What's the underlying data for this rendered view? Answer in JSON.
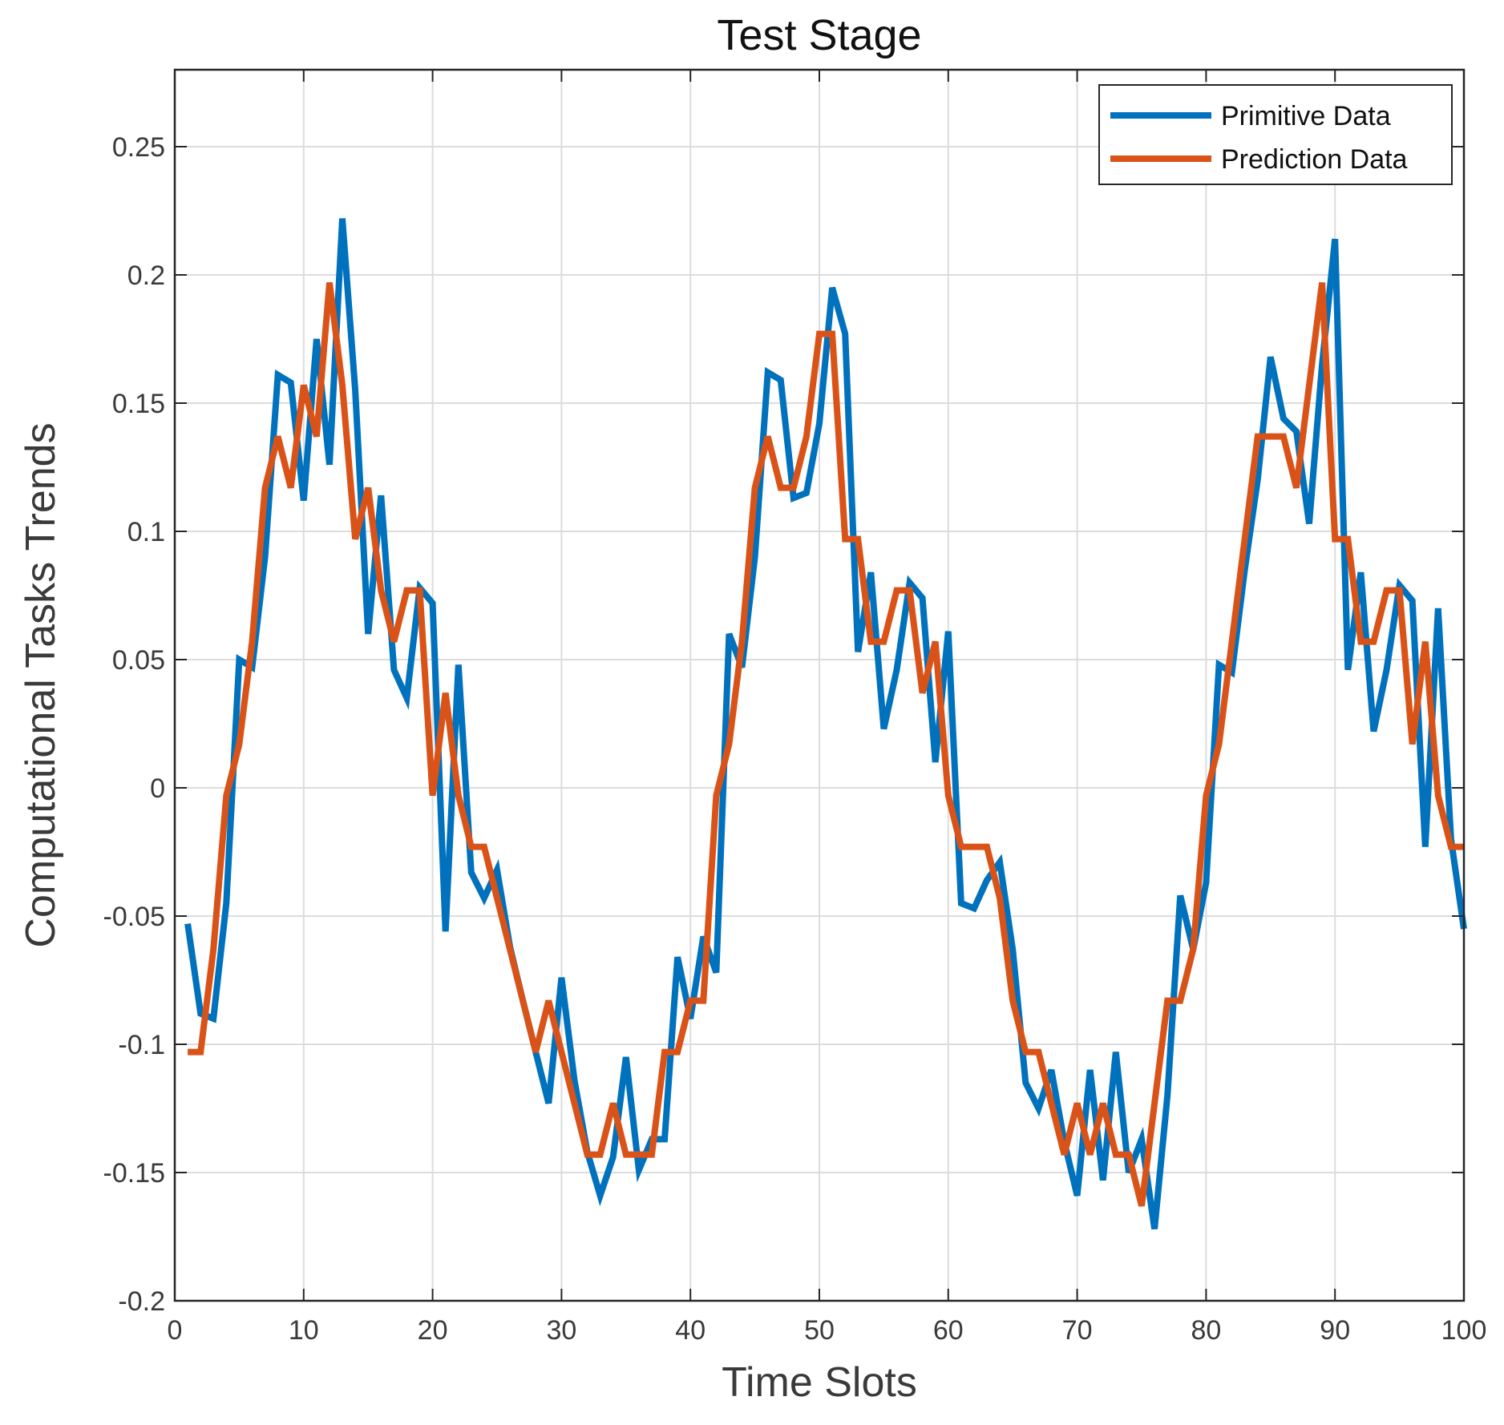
{
  "chart_data": {
    "type": "line",
    "title": "Test Stage",
    "xlabel": "Time Slots",
    "ylabel": "Computational Tasks Trends",
    "xlim": [
      0,
      100
    ],
    "ylim": [
      -0.2,
      0.28
    ],
    "xticks": [
      0,
      10,
      20,
      30,
      40,
      50,
      60,
      70,
      80,
      90,
      100
    ],
    "xtick_labels": [
      "0",
      "10",
      "20",
      "30",
      "40",
      "50",
      "60",
      "70",
      "80",
      "90",
      "100"
    ],
    "yticks": [
      -0.2,
      -0.15,
      -0.1,
      -0.05,
      0,
      0.05,
      0.1,
      0.15,
      0.2,
      0.25
    ],
    "ytick_labels": [
      "-0.2",
      "-0.15",
      "-0.1",
      "-0.05",
      "0",
      "0.05",
      "0.1",
      "0.15",
      "0.2",
      "0.25"
    ],
    "grid": true,
    "legend_position": "top-right",
    "x": [
      1,
      2,
      3,
      4,
      5,
      6,
      7,
      8,
      9,
      10,
      11,
      12,
      13,
      14,
      15,
      16,
      17,
      18,
      19,
      20,
      21,
      22,
      23,
      24,
      25,
      26,
      27,
      28,
      29,
      30,
      31,
      32,
      33,
      34,
      35,
      36,
      37,
      38,
      39,
      40,
      41,
      42,
      43,
      44,
      45,
      46,
      47,
      48,
      49,
      50,
      51,
      52,
      53,
      54,
      55,
      56,
      57,
      58,
      59,
      60,
      61,
      62,
      63,
      64,
      65,
      66,
      67,
      68,
      69,
      70,
      71,
      72,
      73,
      74,
      75,
      76,
      77,
      78,
      79,
      80,
      81,
      82,
      83,
      84,
      85,
      86,
      87,
      88,
      89,
      90,
      91,
      92,
      93,
      94,
      95,
      96,
      97,
      98,
      99,
      100
    ],
    "series": [
      {
        "name": "Primitive Data",
        "color": "#0072BD",
        "values": [
          -0.053,
          -0.088,
          -0.09,
          -0.045,
          0.05,
          0.047,
          0.09,
          0.161,
          0.158,
          0.112,
          0.175,
          0.126,
          0.222,
          0.155,
          0.06,
          0.114,
          0.046,
          0.035,
          0.078,
          0.072,
          -0.056,
          0.048,
          -0.033,
          -0.043,
          -0.032,
          -0.062,
          -0.083,
          -0.103,
          -0.123,
          -0.074,
          -0.114,
          -0.142,
          -0.159,
          -0.144,
          -0.105,
          -0.149,
          -0.137,
          -0.137,
          -0.066,
          -0.09,
          -0.058,
          -0.072,
          0.06,
          0.047,
          0.09,
          0.162,
          0.159,
          0.113,
          0.115,
          0.142,
          0.195,
          0.177,
          0.053,
          0.084,
          0.023,
          0.046,
          0.08,
          0.074,
          0.01,
          0.061,
          -0.045,
          -0.047,
          -0.036,
          -0.029,
          -0.063,
          -0.115,
          -0.125,
          -0.11,
          -0.138,
          -0.159,
          -0.11,
          -0.153,
          -0.103,
          -0.15,
          -0.137,
          -0.172,
          -0.12,
          -0.042,
          -0.063,
          -0.037,
          0.048,
          0.045,
          0.085,
          0.12,
          0.168,
          0.144,
          0.139,
          0.103,
          0.165,
          0.214,
          0.046,
          0.084,
          0.022,
          0.046,
          0.079,
          0.073,
          -0.023,
          0.07,
          -0.02,
          -0.055
        ]
      },
      {
        "name": "Prediction Data",
        "color": "#D95319",
        "values": [
          -0.103,
          -0.103,
          -0.063,
          -0.003,
          0.017,
          0.057,
          0.117,
          0.137,
          0.117,
          0.157,
          0.137,
          0.197,
          0.157,
          0.097,
          0.117,
          0.077,
          0.057,
          0.077,
          0.077,
          -0.003,
          0.037,
          -0.003,
          -0.023,
          -0.023,
          -0.043,
          -0.063,
          -0.083,
          -0.103,
          -0.083,
          -0.103,
          -0.123,
          -0.143,
          -0.143,
          -0.123,
          -0.143,
          -0.143,
          -0.143,
          -0.103,
          -0.103,
          -0.083,
          -0.083,
          -0.003,
          0.017,
          0.057,
          0.117,
          0.137,
          0.117,
          0.117,
          0.137,
          0.177,
          0.177,
          0.097,
          0.097,
          0.057,
          0.057,
          0.077,
          0.077,
          0.037,
          0.057,
          -0.003,
          -0.023,
          -0.023,
          -0.023,
          -0.043,
          -0.083,
          -0.103,
          -0.103,
          -0.123,
          -0.143,
          -0.123,
          -0.143,
          -0.123,
          -0.143,
          -0.143,
          -0.163,
          -0.123,
          -0.083,
          -0.083,
          -0.063,
          -0.003,
          0.017,
          0.057,
          0.097,
          0.137,
          0.137,
          0.137,
          0.117,
          0.157,
          0.197,
          0.097,
          0.097,
          0.057,
          0.057,
          0.077,
          0.077,
          0.017,
          0.057,
          -0.003,
          -0.023,
          -0.023
        ]
      }
    ]
  }
}
